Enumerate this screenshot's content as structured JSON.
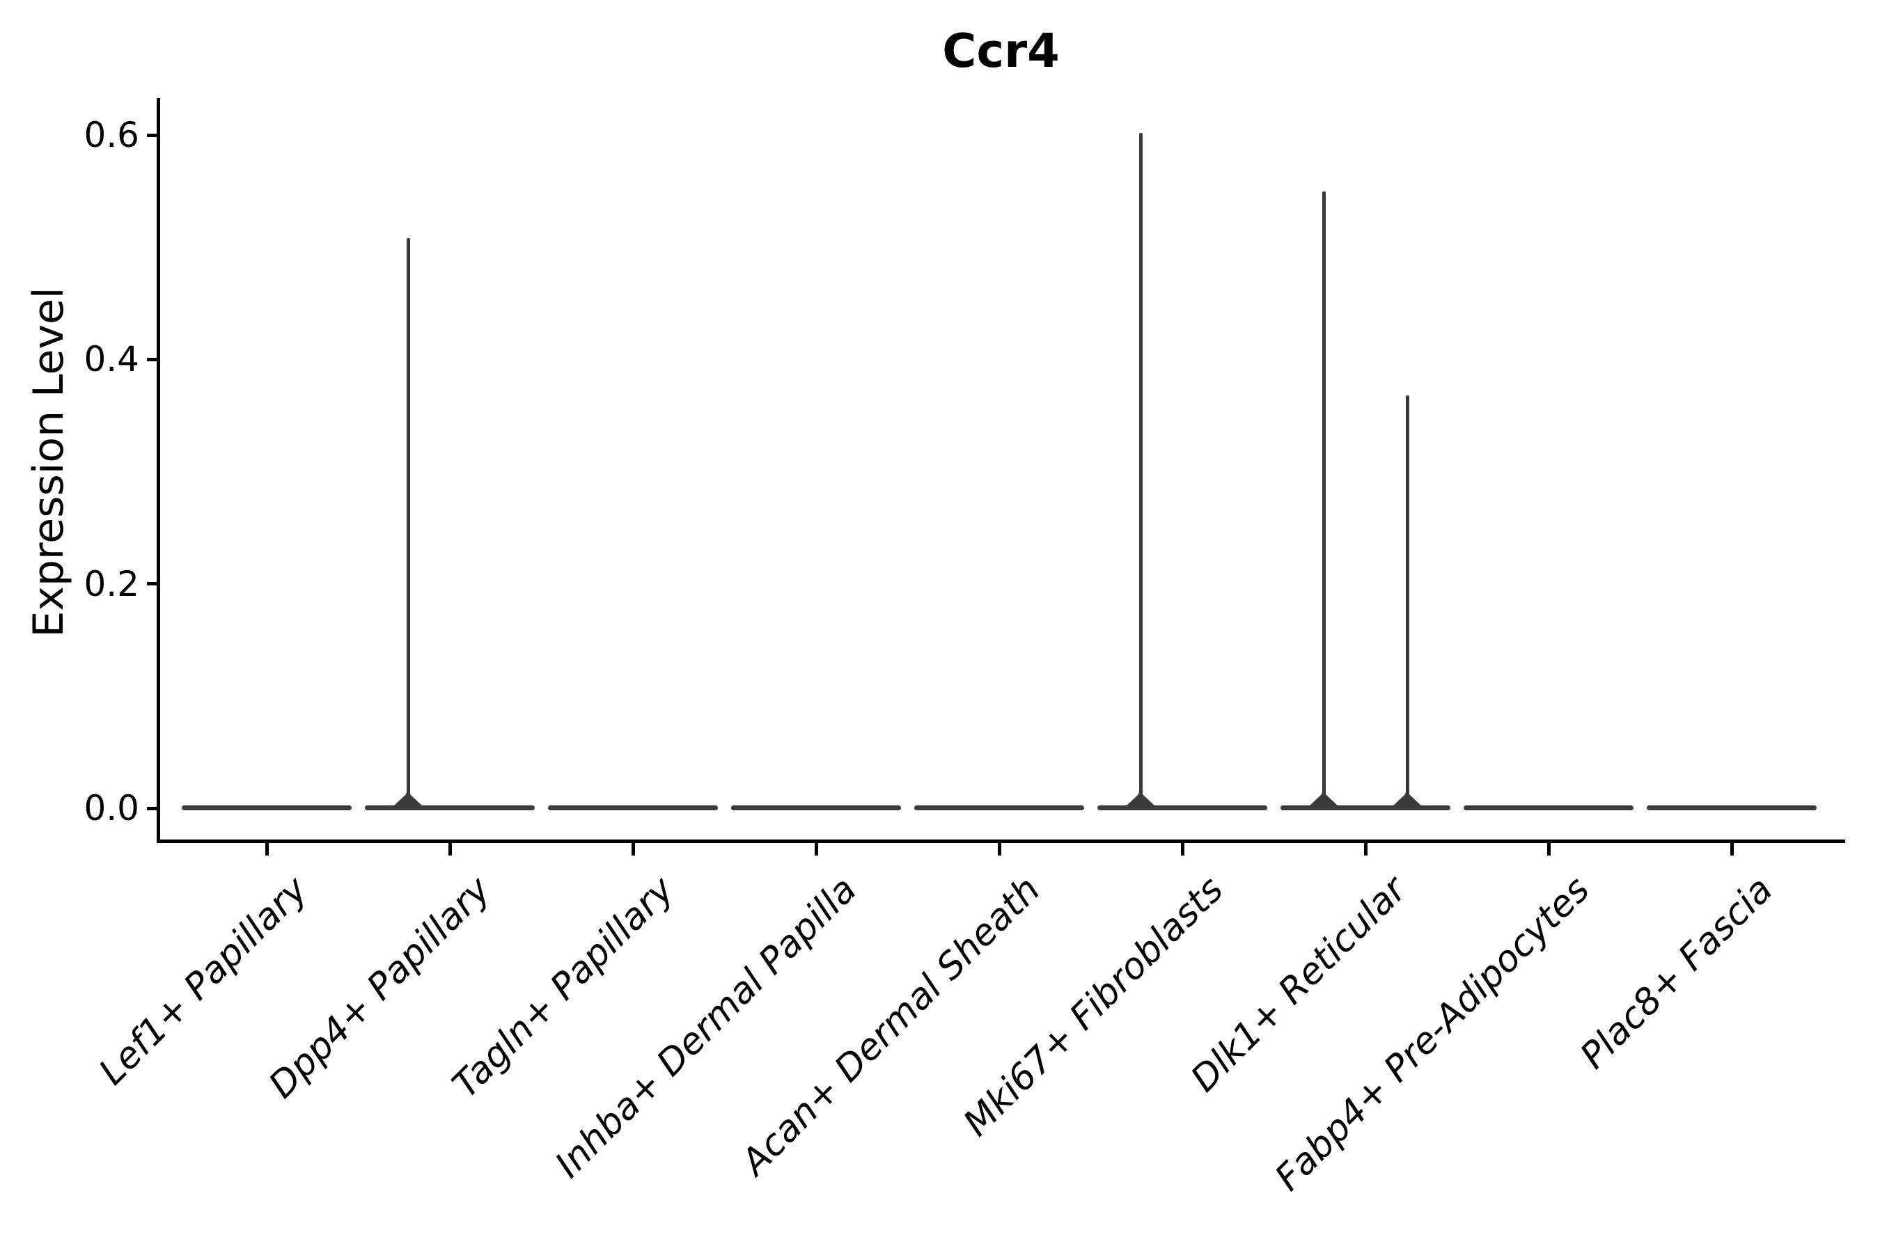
{
  "title": "Ccr4",
  "y_axis": {
    "label": "Expression Level",
    "tick_labels": [
      "0.0",
      "0.2",
      "0.4",
      "0.6"
    ]
  },
  "colors": {
    "violin": "#3a3a3a",
    "axis": "#000000",
    "text": "#000000",
    "background": "#ffffff"
  },
  "chart_data": {
    "type": "violin",
    "title": "Ccr4",
    "xlabel": "",
    "ylabel": "Expression Level",
    "yticks": [
      0.0,
      0.2,
      0.4,
      0.6
    ],
    "ylim": [
      -0.03,
      0.66
    ],
    "grid": false,
    "legend": "none",
    "description": "Split violin plot of Ccr4 expression; two violins per cell-type category. Nearly all density lies at 0 (flat bars); thin spikes mark the maximum expression reached in a group.",
    "categories": [
      "Lef1+ Papillary",
      "Dpp4+ Papillary",
      "Tagln+ Papillary",
      "Inhba+ Dermal Papilla",
      "Acan+ Dermal Sheath",
      "Mki67+ Fibroblasts",
      "Dlk1+ Reticular",
      "Fabp4+ Pre-Adipocytes",
      "Plac8+ Fascia"
    ],
    "series": [
      {
        "category": "Lef1+ Papillary",
        "peak_left": 0,
        "peak_right": 0
      },
      {
        "category": "Dpp4+ Papillary",
        "peak_left": 0.508,
        "peak_right": 0
      },
      {
        "category": "Tagln+ Papillary",
        "peak_left": 0,
        "peak_right": 0
      },
      {
        "category": "Inhba+ Dermal Papilla",
        "peak_left": 0,
        "peak_right": 0
      },
      {
        "category": "Acan+ Dermal Sheath",
        "peak_left": 0,
        "peak_right": 0
      },
      {
        "category": "Mki67+ Fibroblasts",
        "peak_left": 0.602,
        "peak_right": 0
      },
      {
        "category": "Dlk1+ Reticular",
        "peak_left": 0.55,
        "peak_right": 0.368
      },
      {
        "category": "Fabp4+ Pre-Adipocytes",
        "peak_left": 0,
        "peak_right": 0
      },
      {
        "category": "Plac8+ Fascia",
        "peak_left": 0,
        "peak_right": 0
      }
    ]
  }
}
